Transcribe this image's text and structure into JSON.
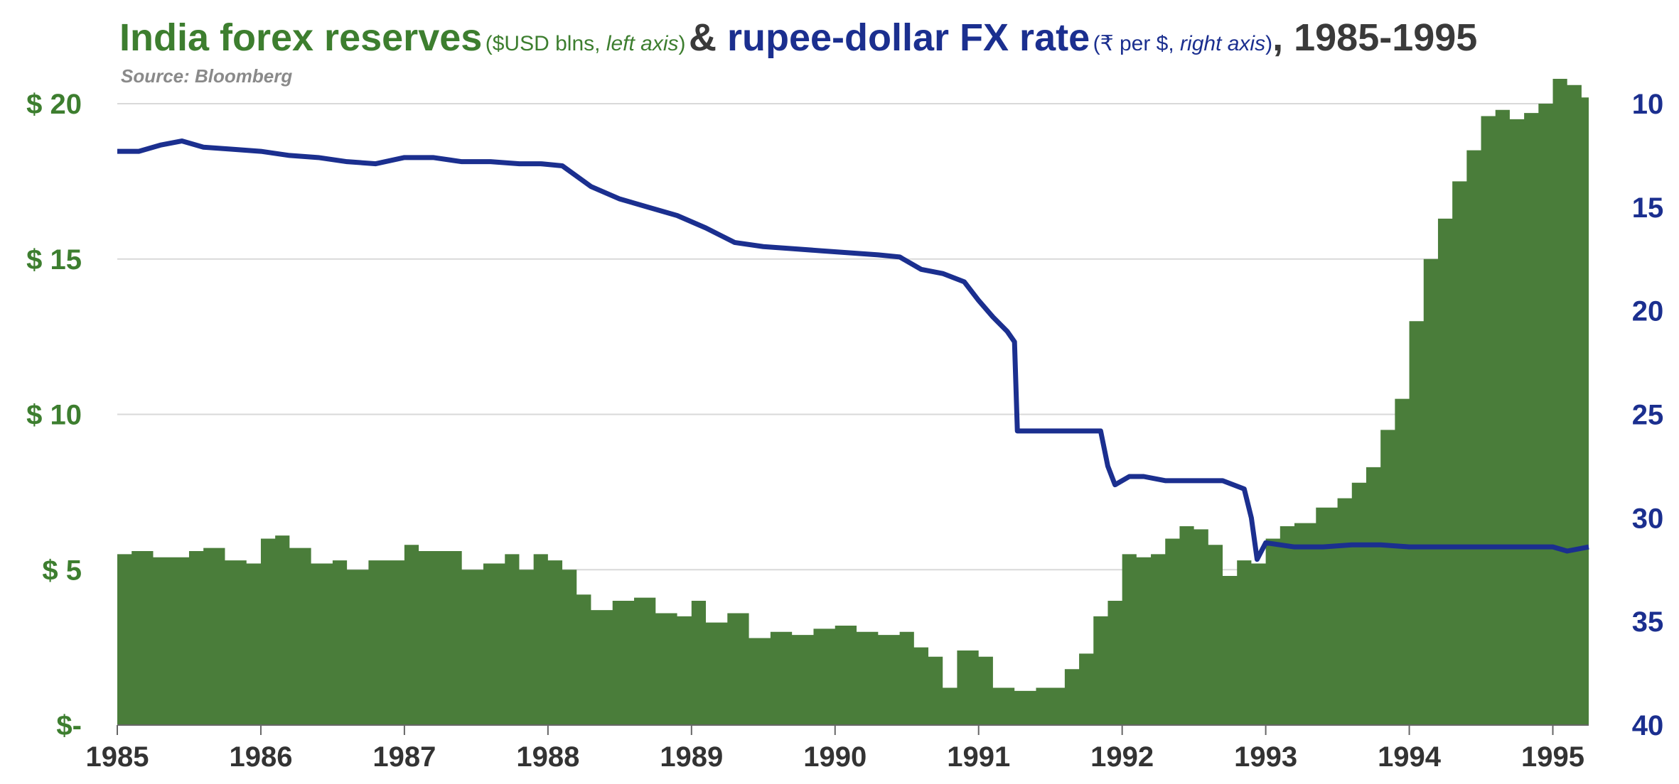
{
  "title": {
    "part1": "India forex reserves",
    "part1_sub_a": "($USD blns, ",
    "part1_sub_b": "left axis",
    "part1_sub_c": ")",
    "amp": " & ",
    "part2": "rupee-dollar FX rate",
    "part2_sub_a": "(₹ per $, ",
    "part2_sub_b": "right axis",
    "part2_sub_c": ")",
    "part3": ", 1985-1995"
  },
  "source": "Source: Bloomberg",
  "colors": {
    "reserves": "#4a7d3a",
    "fx": "#1b2f8f",
    "grid": "#d9d9d9",
    "left_axis_text": "#3d7e2f",
    "right_axis_text": "#1b2f8f"
  },
  "chart_data": {
    "type": "area+line",
    "xlim": [
      1985.0,
      1995.25
    ],
    "x_ticks": [
      "1985",
      "1986",
      "1987",
      "1988",
      "1989",
      "1990",
      "1991",
      "1992",
      "1993",
      "1994",
      "1995"
    ],
    "left_axis": {
      "ylim": [
        0,
        20
      ],
      "ticks": [
        {
          "value": 0,
          "label": "$-"
        },
        {
          "value": 5,
          "label": "$ 5"
        },
        {
          "value": 10,
          "label": "$ 10"
        },
        {
          "value": 15,
          "label": "$ 15"
        },
        {
          "value": 20,
          "label": "$ 20"
        }
      ]
    },
    "right_axis": {
      "ylim": [
        10,
        40
      ],
      "inverted": true,
      "ticks": [
        {
          "value": 10,
          "label": "10"
        },
        {
          "value": 15,
          "label": "15"
        },
        {
          "value": 20,
          "label": "20"
        },
        {
          "value": 25,
          "label": "25"
        },
        {
          "value": 30,
          "label": "30"
        },
        {
          "value": 35,
          "label": "35"
        },
        {
          "value": 40,
          "label": "40"
        }
      ]
    },
    "grid": true,
    "series": [
      {
        "type": "area",
        "axis": "left",
        "x": [
          1985.0,
          1985.1,
          1985.25,
          1985.4,
          1985.5,
          1985.6,
          1985.75,
          1985.9,
          1986.0,
          1986.1,
          1986.2,
          1986.35,
          1986.5,
          1986.6,
          1986.75,
          1986.9,
          1987.0,
          1987.1,
          1987.25,
          1987.4,
          1987.55,
          1987.7,
          1987.8,
          1987.9,
          1988.0,
          1988.1,
          1988.2,
          1988.3,
          1988.45,
          1988.6,
          1988.75,
          1988.9,
          1989.0,
          1989.1,
          1989.25,
          1989.4,
          1989.55,
          1989.7,
          1989.85,
          1990.0,
          1990.15,
          1990.3,
          1990.45,
          1990.55,
          1990.65,
          1990.75,
          1990.85,
          1991.0,
          1991.1,
          1991.25,
          1991.4,
          1991.5,
          1991.6,
          1991.7,
          1991.8,
          1991.9,
          1992.0,
          1992.1,
          1992.2,
          1992.3,
          1992.4,
          1992.5,
          1992.6,
          1992.7,
          1992.8,
          1992.9,
          1993.0,
          1993.1,
          1993.2,
          1993.35,
          1993.5,
          1993.6,
          1993.7,
          1993.8,
          1993.9,
          1994.0,
          1994.1,
          1994.2,
          1994.3,
          1994.4,
          1994.5,
          1994.6,
          1994.7,
          1994.8,
          1994.9,
          1995.0,
          1995.1,
          1995.2,
          1995.25
        ],
        "y": [
          5.5,
          5.6,
          5.4,
          5.4,
          5.6,
          5.7,
          5.3,
          5.2,
          6.0,
          6.1,
          5.7,
          5.2,
          5.3,
          5.0,
          5.3,
          5.3,
          5.8,
          5.6,
          5.6,
          5.0,
          5.2,
          5.5,
          5.0,
          5.5,
          5.3,
          5.0,
          4.2,
          3.7,
          4.0,
          4.1,
          3.6,
          3.5,
          4.0,
          3.3,
          3.6,
          2.8,
          3.0,
          2.9,
          3.1,
          3.2,
          3.0,
          2.9,
          3.0,
          2.5,
          2.2,
          1.2,
          2.4,
          2.2,
          1.2,
          1.1,
          1.2,
          1.2,
          1.8,
          2.3,
          3.5,
          4.0,
          5.5,
          5.4,
          5.5,
          6.0,
          6.4,
          6.3,
          5.8,
          4.8,
          5.3,
          5.2,
          6.0,
          6.4,
          6.5,
          7.0,
          7.3,
          7.8,
          8.3,
          9.5,
          10.5,
          13.0,
          15.0,
          16.3,
          17.5,
          18.5,
          19.6,
          19.8,
          19.5,
          19.7,
          20.0,
          20.8,
          20.6,
          20.2,
          19.6
        ]
      },
      {
        "type": "line",
        "axis": "right",
        "x": [
          1985.0,
          1985.15,
          1985.3,
          1985.45,
          1985.6,
          1985.8,
          1986.0,
          1986.2,
          1986.4,
          1986.6,
          1986.8,
          1987.0,
          1987.2,
          1987.4,
          1987.6,
          1987.8,
          1987.95,
          1988.1,
          1988.3,
          1988.5,
          1988.7,
          1988.9,
          1989.1,
          1989.3,
          1989.5,
          1989.7,
          1989.9,
          1990.1,
          1990.3,
          1990.45,
          1990.6,
          1990.75,
          1990.9,
          1991.0,
          1991.1,
          1991.2,
          1991.25,
          1991.27,
          1991.4,
          1991.6,
          1991.85,
          1991.9,
          1991.95,
          1992.05,
          1992.15,
          1992.3,
          1992.5,
          1992.7,
          1992.85,
          1992.9,
          1992.94,
          1993.0,
          1993.2,
          1993.4,
          1993.6,
          1993.8,
          1994.0,
          1994.2,
          1994.4,
          1994.6,
          1994.8,
          1995.0,
          1995.1,
          1995.25
        ],
        "y": [
          12.3,
          12.3,
          12.0,
          11.8,
          12.1,
          12.2,
          12.3,
          12.5,
          12.6,
          12.8,
          12.9,
          12.6,
          12.6,
          12.8,
          12.8,
          12.9,
          12.9,
          13.0,
          14.0,
          14.6,
          15.0,
          15.4,
          16.0,
          16.7,
          16.9,
          17.0,
          17.1,
          17.2,
          17.3,
          17.4,
          18.0,
          18.2,
          18.6,
          19.5,
          20.3,
          21.0,
          21.5,
          25.8,
          25.8,
          25.8,
          25.8,
          27.5,
          28.4,
          28.0,
          28.0,
          28.2,
          28.2,
          28.2,
          28.6,
          30.0,
          32.0,
          31.2,
          31.4,
          31.4,
          31.3,
          31.3,
          31.4,
          31.4,
          31.4,
          31.4,
          31.4,
          31.4,
          31.6,
          31.4
        ]
      }
    ]
  }
}
